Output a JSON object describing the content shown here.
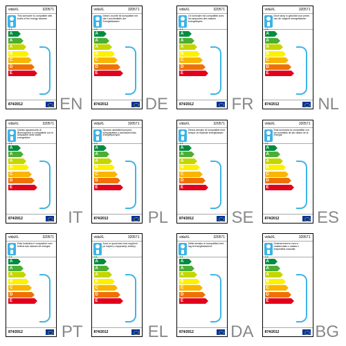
{
  "brand": "vidaXL",
  "model": "320571",
  "regulation": "874/2012",
  "energy_classes": [
    "A",
    "A",
    "A",
    "B",
    "C",
    "D",
    "E"
  ],
  "plus_marks": [
    "++",
    "+"
  ],
  "bar_colors": [
    "#008c3f",
    "#4cae34",
    "#c4d600",
    "#fdf100",
    "#f9b500",
    "#ee7203",
    "#e2001a"
  ],
  "brace_color": "#3cb4e7",
  "lamp_icon_color": "#3cb4e7",
  "flag_bg": "#003399",
  "labels": [
    {
      "lang": "EN",
      "text": "This luminaire is compatible with bulbs of the energy classes:"
    },
    {
      "lang": "DE",
      "text": "Diese Leuchte ist kompatibel mit den Leuchtmitteln der Energieklassen:"
    },
    {
      "lang": "FR",
      "text": "Ce luminaire est compatible avec les ampoules des classes énergétiques:"
    },
    {
      "lang": "NL",
      "text": "Deze lamp is geschikt voor peren van de volgend energieklasse:"
    },
    {
      "lang": "IT",
      "text": "Questo apparecchio di illuminazione è compatibile con le lampadine delle classi energetiche:"
    },
    {
      "lang": "PL",
      "text": "Oprawa oświetleniowa jest kompatybilna z żarówkami klas energetycznych:"
    },
    {
      "lang": "SE",
      "text": "Denna armatur är kompatibel med lampor av följande energiklasser:"
    },
    {
      "lang": "ES",
      "text": "Esta luminaria es compatible con las bombillas de las clases de la energía:"
    },
    {
      "lang": "PT",
      "text": "Esta luminária é compatível com bulbos das classes de energia:"
    },
    {
      "lang": "EL",
      "text": "Αυτό το φωτιστικό είναι συμβατό με λάμπες ενεργειακής κλάσης:"
    },
    {
      "lang": "DA",
      "text": "Dette armatur er kompatibel med lag af energiklasserne:"
    },
    {
      "lang": "BG",
      "text": "Осветителното тяло е съвместимо с лампи с енергийни класове:"
    }
  ]
}
